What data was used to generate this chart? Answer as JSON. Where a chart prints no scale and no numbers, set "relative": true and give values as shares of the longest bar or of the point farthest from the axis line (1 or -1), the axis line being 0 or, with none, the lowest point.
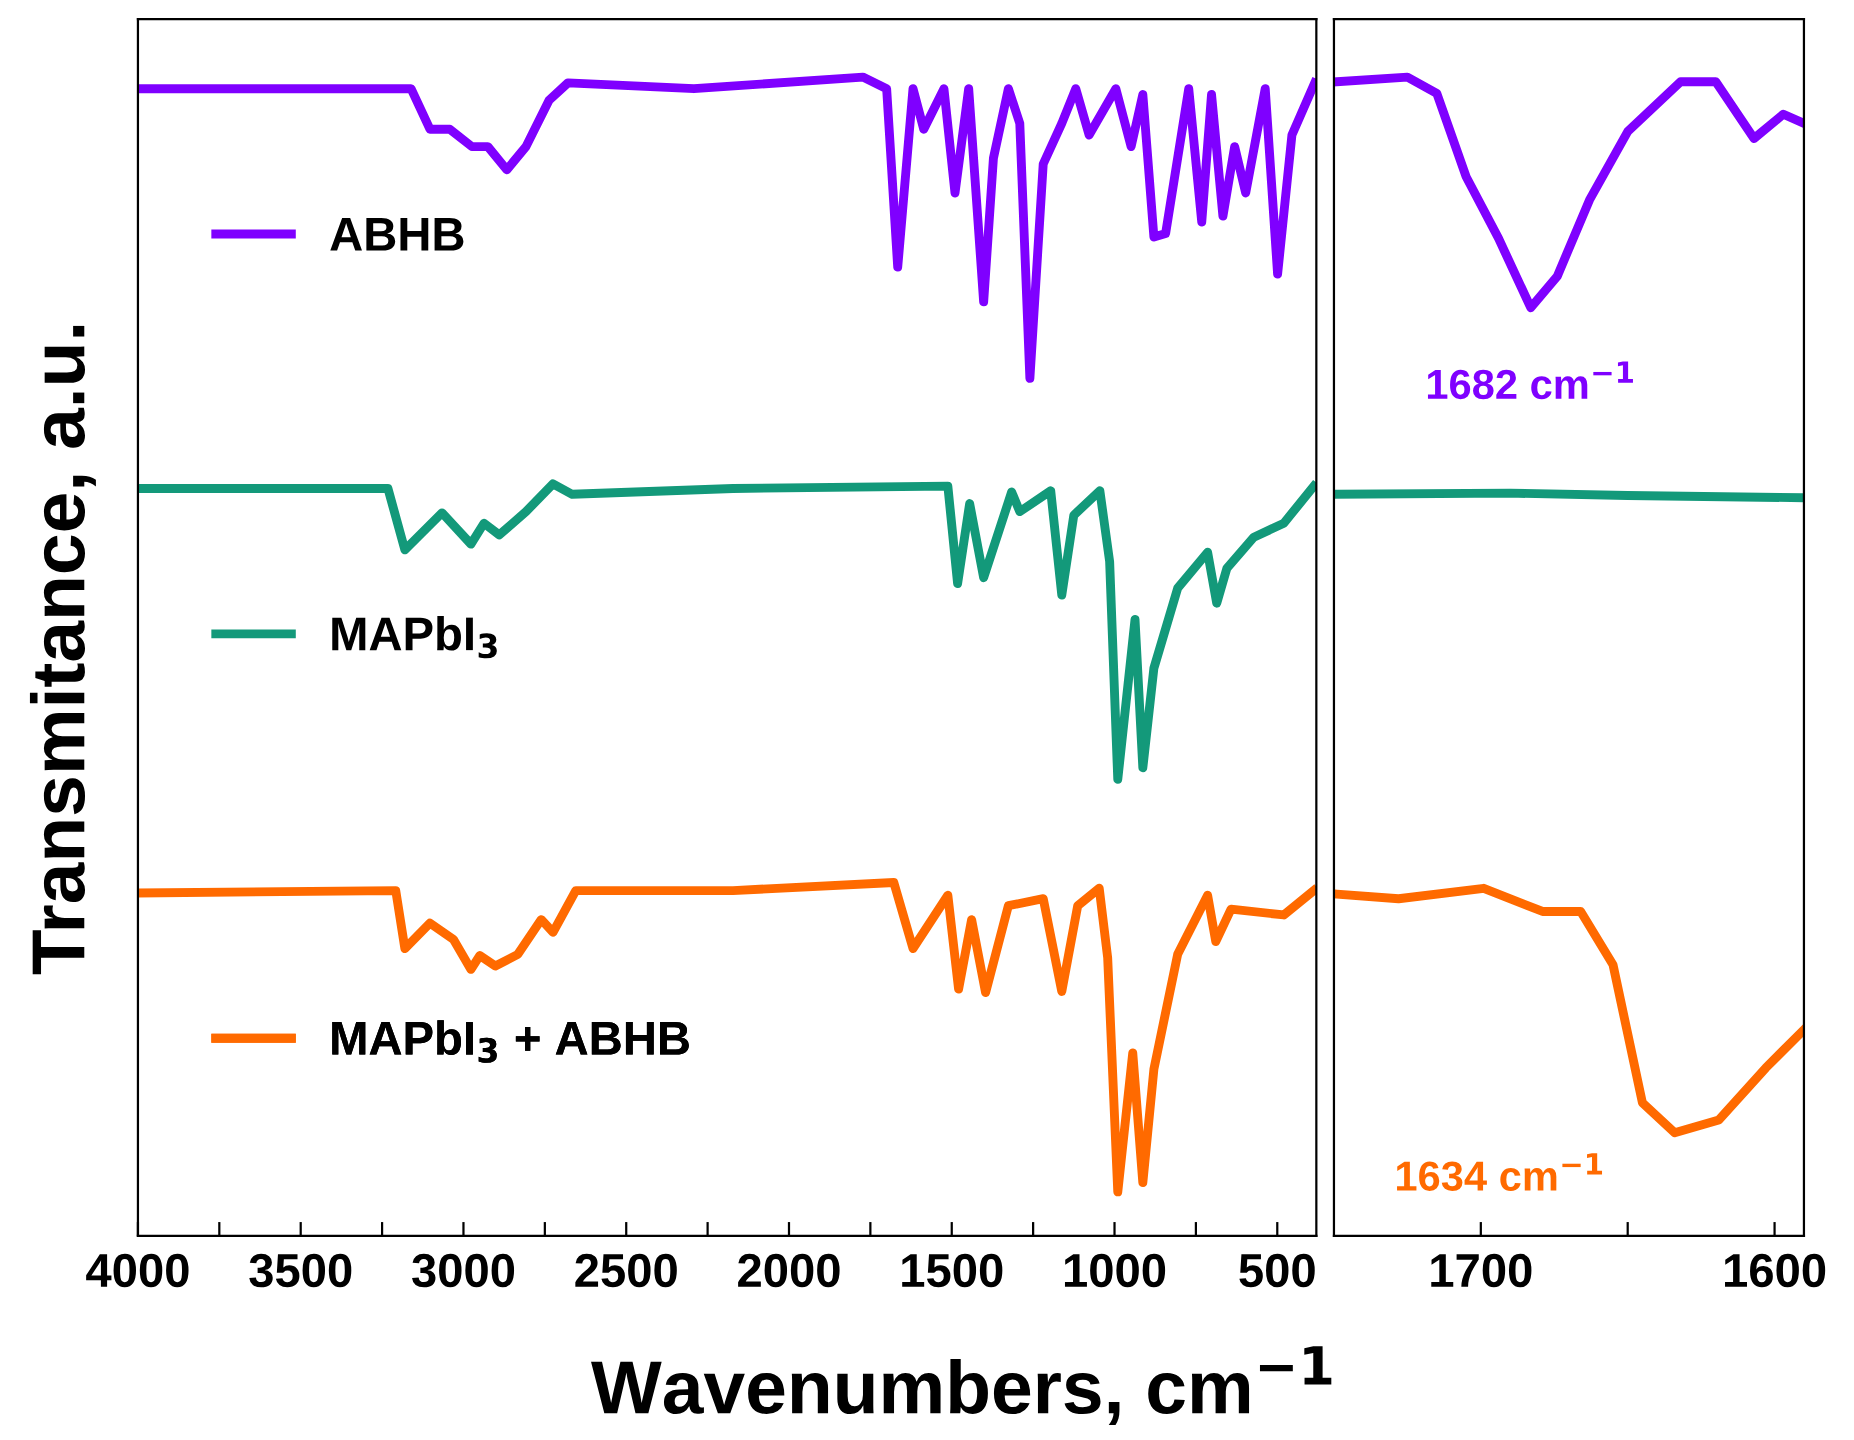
{
  "chart_data": [
    {
      "type": "line",
      "relative": true,
      "ylabel": "Transmitance, a.u.",
      "xlabel": "Wavenumbers, cm$^{−1}$",
      "xlim": [
        4000,
        380
      ],
      "xticks": [
        4000,
        {
          "value": 3750,
          "label": null
        },
        3500,
        {
          "value": 3250,
          "label": null
        },
        3000,
        {
          "value": 2750,
          "label": null
        },
        2500,
        {
          "value": 2250,
          "label": null
        },
        2000,
        {
          "value": 1750,
          "label": null
        },
        1500,
        {
          "value": 1250,
          "label": null
        },
        1000,
        {
          "value": 750,
          "label": null
        },
        500
      ],
      "tick_labels": "x",
      "grid": false,
      "legend": "left",
      "marker": "none",
      "line_style": "solid",
      "series": [
        {
          "name": "ABHB",
          "color": "#7f00ff",
          "x": [
            4000,
            3398,
            3161,
            3103,
            3042,
            2974,
            2925,
            2867,
            2808,
            2737,
            2679,
            2292,
            1773,
            1700,
            1666,
            1619,
            1586,
            1524,
            1490,
            1448,
            1402,
            1372,
            1326,
            1291,
            1260,
            1219,
            1162,
            1119,
            1078,
            996,
            949,
            913,
            879,
            843,
            772,
            732,
            702,
            667,
            631,
            597,
            537,
            499,
            455,
            385
          ],
          "values": [
            0.99,
            0.99,
            0.99,
            0.955,
            0.955,
            0.94,
            0.94,
            0.92,
            0.94,
            0.98,
            0.995,
            0.99,
            1.0,
            0.99,
            0.836,
            0.99,
            0.955,
            0.99,
            0.9,
            0.99,
            0.806,
            0.93,
            0.99,
            0.96,
            0.74,
            0.925,
            0.96,
            0.99,
            0.95,
            0.99,
            0.94,
            0.985,
            0.862,
            0.865,
            0.99,
            0.875,
            0.985,
            0.88,
            0.94,
            0.9,
            0.99,
            0.83,
            0.95,
            0.995
          ]
        },
        {
          "name": "MAPbI$_{3}$",
          "color": "#13997a",
          "x": [
            4000,
            3232,
            3180,
            3066,
            2977,
            2937,
            2890,
            2808,
            2725,
            2666,
            2172,
            1512,
            1482,
            1445,
            1402,
            1316,
            1291,
            1196,
            1162,
            1125,
            1045,
            1015,
            990,
            937,
            913,
            879,
            806,
            714,
            686,
            655,
            572,
            480,
            388
          ],
          "values": [
            0.645,
            0.645,
            0.592,
            0.624,
            0.597,
            0.615,
            0.605,
            0.625,
            0.649,
            0.64,
            0.645,
            0.647,
            0.563,
            0.632,
            0.568,
            0.642,
            0.625,
            0.643,
            0.553,
            0.622,
            0.643,
            0.582,
            0.394,
            0.532,
            0.404,
            0.49,
            0.559,
            0.59,
            0.546,
            0.576,
            0.603,
            0.615,
            0.647
          ]
        },
        {
          "name": "MAPbI$_{3}$ + ABHB",
          "color": "#ff6a00",
          "x": [
            4000,
            3208,
            3180,
            3103,
            3031,
            2977,
            2950,
            2902,
            2833,
            2761,
            2725,
            2655,
            2172,
            1678,
            1619,
            1512,
            1479,
            1439,
            1396,
            1326,
            1219,
            1162,
            1113,
            1047,
            1021,
            990,
            944,
            913,
            879,
            806,
            714,
            689,
            642,
            480,
            388
          ],
          "values": [
            0.296,
            0.298,
            0.248,
            0.27,
            0.256,
            0.23,
            0.242,
            0.233,
            0.243,
            0.273,
            0.262,
            0.298,
            0.298,
            0.305,
            0.248,
            0.294,
            0.213,
            0.273,
            0.21,
            0.285,
            0.291,
            0.211,
            0.285,
            0.3,
            0.24,
            0.038,
            0.158,
            0.046,
            0.144,
            0.243,
            0.294,
            0.254,
            0.282,
            0.277,
            0.298
          ]
        }
      ]
    },
    {
      "type": "line",
      "relative": true,
      "xlim": [
        1750,
        1590
      ],
      "xticks": [
        1700,
        {
          "value": 1650,
          "label": null
        },
        1600
      ],
      "tick_labels": "x",
      "grid": false,
      "marker": "none",
      "line_style": "solid",
      "annotations": [
        {
          "text": "1682 cm$^{−1}$",
          "x": 1683,
          "y": 0.801
        },
        {
          "text": "1634 cm$^{−1}$",
          "x": 1634,
          "y": 0.089
        }
      ],
      "series": [
        {
          "color": "#7f00ff",
          "x": [
            1749,
            1725,
            1715,
            1705,
            1694,
            1683,
            1674,
            1663,
            1650,
            1632,
            1620,
            1607,
            1597,
            1590
          ],
          "values": [
            0.996,
            1.0,
            0.986,
            0.914,
            0.861,
            0.801,
            0.828,
            0.894,
            0.953,
            0.996,
            0.996,
            0.947,
            0.968,
            0.96
          ]
        },
        {
          "color": "#13997a",
          "x": [
            1749,
            1690,
            1650,
            1590
          ],
          "values": [
            0.64,
            0.641,
            0.639,
            0.637
          ]
        },
        {
          "color": "#ff6a00",
          "x": [
            1749,
            1728,
            1699,
            1679,
            1666,
            1655,
            1645,
            1634,
            1619,
            1603,
            1590
          ],
          "values": [
            0.295,
            0.291,
            0.3,
            0.28,
            0.28,
            0.234,
            0.115,
            0.089,
            0.1,
            0.145,
            0.178
          ]
        }
      ]
    }
  ]
}
